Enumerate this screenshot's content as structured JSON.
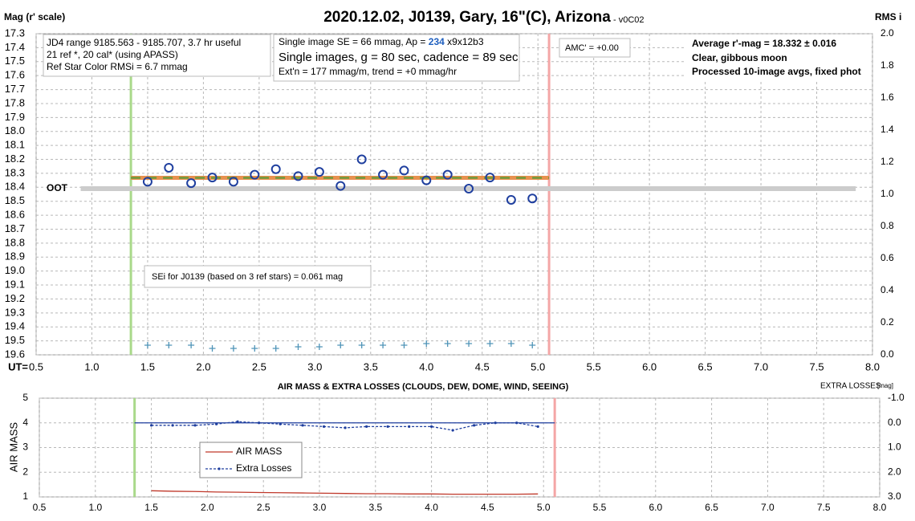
{
  "chart_data": [
    {
      "type": "scatter",
      "title": "2020.12.02, J0139, Gary, 16\"(C), Arizona",
      "subtitle": "- v0C02",
      "ylabel": "Mag (r' scale)",
      "y2label": "RMS i",
      "xlabel": "UT=",
      "x": [
        1.5,
        1.69,
        1.89,
        2.08,
        2.27,
        2.46,
        2.65,
        2.85,
        3.04,
        3.23,
        3.42,
        3.61,
        3.8,
        4.0,
        4.19,
        4.38,
        4.57,
        4.76,
        4.95
      ],
      "series": [
        {
          "color": "#1f3f9f",
          "marker": "circle",
          "values": [
            18.36,
            18.26,
            18.37,
            18.33,
            18.36,
            18.31,
            18.27,
            18.32,
            18.29,
            18.39,
            18.2,
            18.31,
            18.28,
            18.35,
            18.31,
            18.41,
            18.33,
            18.49,
            18.48
          ]
        },
        {
          "color": "#4f94b8",
          "marker": "plus",
          "axis": "y2",
          "values": [
            0.06,
            0.06,
            0.06,
            0.04,
            0.04,
            0.04,
            0.04,
            0.05,
            0.05,
            0.06,
            0.06,
            0.06,
            0.06,
            0.07,
            0.07,
            0.07,
            0.07,
            0.07,
            0.06
          ]
        }
      ],
      "xlim": [
        0.5,
        8.0
      ],
      "xticks": [
        0.5,
        {
          "value": 1,
          "label": "1.0"
        },
        1.5,
        {
          "value": 2,
          "label": "2.0"
        },
        2.5,
        {
          "value": 3,
          "label": "3.0"
        },
        3.5,
        {
          "value": 4,
          "label": "4.0"
        },
        4.5,
        {
          "value": 5,
          "label": "5.0"
        },
        5.5,
        {
          "value": 6,
          "label": "6.0"
        },
        6.5,
        {
          "value": 7,
          "label": "7.0"
        },
        7.5,
        {
          "value": 8,
          "label": "8.0"
        }
      ],
      "ylim": [
        17.3,
        19.6
      ],
      "y_reversed": true,
      "yticks": [
        17.3,
        17.4,
        17.5,
        17.6,
        17.7,
        17.8,
        17.9,
        {
          "value": 18,
          "label": "18.0"
        },
        18.1,
        18.2,
        18.3,
        18.4,
        18.5,
        18.6,
        18.7,
        18.8,
        18.9,
        {
          "value": 19,
          "label": "19.0"
        },
        19.1,
        19.2,
        19.3,
        19.4,
        19.5,
        19.6
      ],
      "y2lim": [
        0,
        2.0
      ],
      "y2ticks": [
        {
          "value": 0,
          "label": "0.0"
        },
        0.2,
        0.4,
        0.6,
        0.8,
        {
          "value": 1,
          "label": "1.0"
        },
        1.2,
        1.4,
        1.6,
        1.8,
        {
          "value": 2,
          "label": "2.0"
        }
      ],
      "grid": true,
      "average": {
        "value": 18.332,
        "x": [
          1.35,
          5.1
        ],
        "color": "#e8914f",
        "dash_color": "#6b9a3c"
      },
      "oot": {
        "label": "OOT",
        "value": 18.41,
        "x": [
          0.9,
          7.85
        ],
        "color": "#cccccc"
      },
      "markers_x": [
        {
          "value": 1.35,
          "color": "#a9d98a"
        },
        {
          "value": 5.1,
          "color": "#f4a6a6"
        }
      ],
      "annotations": [
        {
          "lines": [
            [
              "JD4 range 9185.563 - 9185.707, 3.7 hr useful"
            ],
            [
              " 21 ref *, 20 cal* (using APASS)"
            ],
            [
              "Ref Star Color RMSi = 6.7 mmag"
            ]
          ]
        },
        {
          "lines": [
            [
              "Single image SE = 66 mmag, Ap = ",
              "234",
              " x9x12b3"
            ],
            [
              "Single images, g = 80 sec, cadence = 89 sec"
            ],
            [
              "Ext'n = 177 mmag/m, trend = +0 mmag/hr"
            ]
          ]
        },
        {
          "lines": [
            [
              "AMC' = +0.00"
            ]
          ]
        },
        {
          "lines": [
            [
              "Average r'-mag =  18.332 ± 0.016"
            ],
            [
              "Clear, gibbous moon"
            ],
            [
              "Processed 10-image avgs, fixed phot"
            ]
          ]
        },
        {
          "lines": [
            [
              "SEi for J0139 (based on 3 ref stars) = 0.061 mag"
            ]
          ]
        }
      ]
    },
    {
      "type": "line",
      "title": "AIR MASS & EXTRA LOSSES (CLOUDS, DEW, DOME, WIND, SEEING)",
      "ylabel": "AIR MASS",
      "y2label": "EXTRA LOSSES",
      "y2label_unit": "[mag]",
      "x": [
        1.5,
        1.69,
        1.89,
        2.08,
        2.27,
        2.46,
        2.65,
        2.85,
        3.04,
        3.23,
        3.42,
        3.61,
        3.8,
        4.0,
        4.19,
        4.38,
        4.57,
        4.76,
        4.95
      ],
      "series": [
        {
          "name": "AIR MASS",
          "color": "#c0392b",
          "values": [
            1.25,
            1.23,
            1.22,
            1.2,
            1.19,
            1.18,
            1.17,
            1.16,
            1.15,
            1.14,
            1.13,
            1.13,
            1.12,
            1.12,
            1.11,
            1.11,
            1.11,
            1.11,
            1.12
          ]
        },
        {
          "name": "Extra Losses",
          "color": "#1f3f9f",
          "axis": "y2",
          "dash": true,
          "values": [
            0.1,
            0.1,
            0.1,
            0.05,
            -0.05,
            0.0,
            0.05,
            0.1,
            0.15,
            0.2,
            0.15,
            0.15,
            0.15,
            0.15,
            0.3,
            0.1,
            0.0,
            0.0,
            0.15
          ]
        }
      ],
      "xlim": [
        0.5,
        8.0
      ],
      "xticks": [
        0.5,
        {
          "value": 1,
          "label": "1.0"
        },
        1.5,
        {
          "value": 2,
          "label": "2.0"
        },
        2.5,
        {
          "value": 3,
          "label": "3.0"
        },
        3.5,
        {
          "value": 4,
          "label": "4.0"
        },
        4.5,
        {
          "value": 5,
          "label": "5.0"
        },
        5.5,
        {
          "value": 6,
          "label": "6.0"
        },
        6.5,
        {
          "value": 7,
          "label": "7.0"
        },
        7.5,
        {
          "value": 8,
          "label": "8.0"
        }
      ],
      "ylim": [
        1,
        5
      ],
      "yticks": [
        1,
        2,
        3,
        4,
        5
      ],
      "y2lim": [
        -1.0,
        3.0
      ],
      "y2_reversed": true,
      "y2ticks": [
        {
          "value": -1,
          "label": "-1.0"
        },
        {
          "value": 0,
          "label": "0.0"
        },
        {
          "value": 1,
          "label": "1.0"
        },
        {
          "value": 2,
          "label": "2.0"
        },
        {
          "value": 3,
          "label": "3.0"
        }
      ],
      "grid": true,
      "baseline_y2": {
        "value": 0,
        "x": [
          1.35,
          5.1
        ],
        "color": "#1f3f9f"
      },
      "markers_x": [
        {
          "value": 1.35,
          "color": "#a9d98a"
        },
        {
          "value": 5.1,
          "color": "#f4a6a6"
        }
      ],
      "legend": "lower-left"
    }
  ]
}
